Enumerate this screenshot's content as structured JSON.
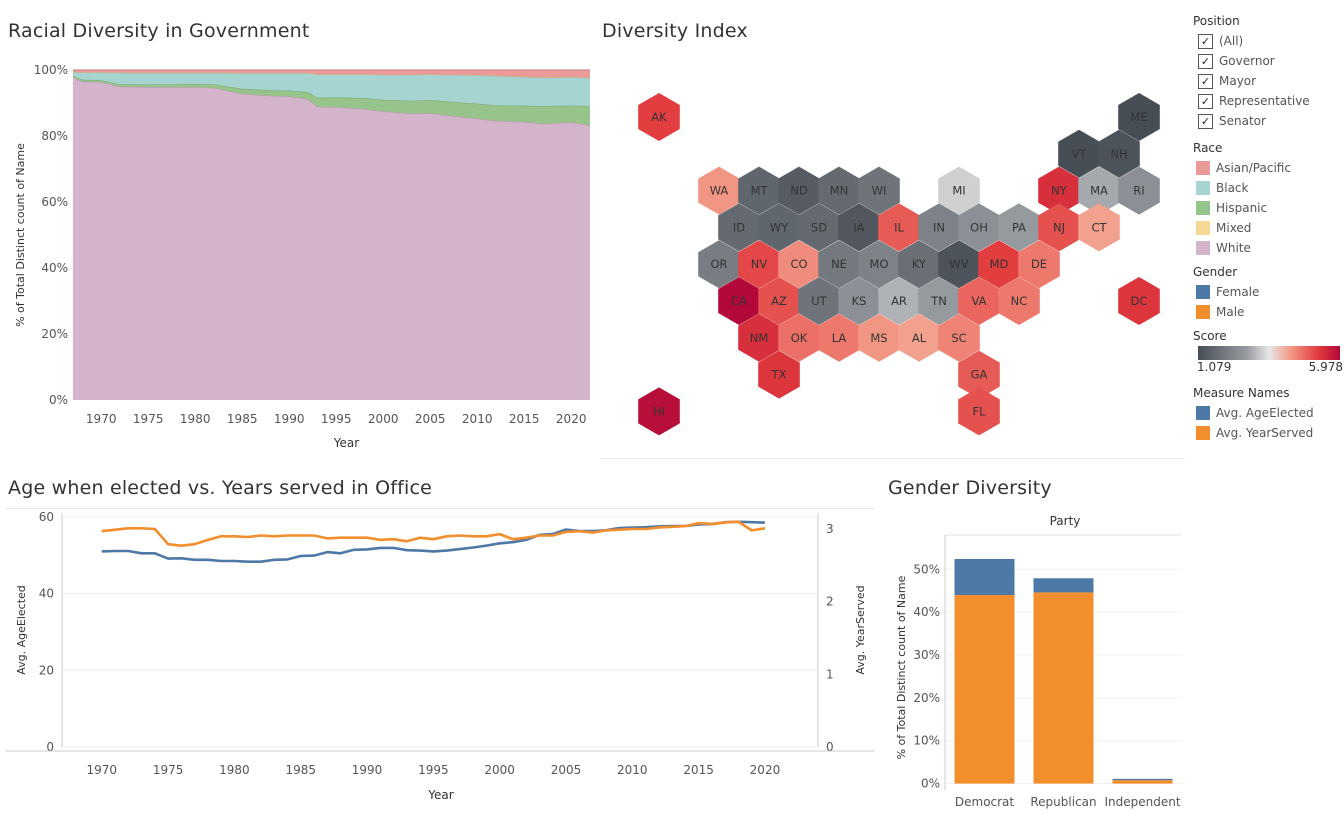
{
  "titles": {
    "racial": "Racial Diversity in Government",
    "index": "Diversity Index",
    "age": "Age when elected vs. Years served in Office",
    "gender": "Gender Diversity"
  },
  "legend": {
    "position_title": "Position",
    "positions": [
      "(All)",
      "Governor",
      "Mayor",
      "Representative",
      "Senator"
    ],
    "race_title": "Race",
    "races": [
      {
        "label": "Asian/Pacific",
        "color": "#eb9a9a"
      },
      {
        "label": "Black",
        "color": "#a6d4d1"
      },
      {
        "label": "Hispanic",
        "color": "#97c48a"
      },
      {
        "label": "Mixed",
        "color": "#f5d896"
      },
      {
        "label": "White",
        "color": "#d3b4ca"
      }
    ],
    "gender_title": "Gender",
    "genders": [
      {
        "label": "Female",
        "color": "#4e79a7"
      },
      {
        "label": "Male",
        "color": "#f28e2b"
      }
    ],
    "score_title": "Score",
    "score_min": "1.079",
    "score_max": "5.978",
    "measure_title": "Measure Names",
    "measures": [
      {
        "label": "Avg. AgeElected",
        "color": "#4e79a7"
      },
      {
        "label": "Avg. YearServed",
        "color": "#f28e2b"
      }
    ]
  },
  "chart_data": [
    {
      "type": "area",
      "title": "Racial Diversity in Government",
      "xlabel": "Year",
      "ylabel": "% of Total Distinct count of Name",
      "xlim": [
        1967,
        2022
      ],
      "ylim": [
        0,
        100
      ],
      "x_ticks": [
        "1970",
        "1975",
        "1980",
        "1985",
        "1990",
        "1995",
        "2000",
        "2005",
        "2010",
        "2015",
        "2020"
      ],
      "y_ticks": [
        "0%",
        "20%",
        "40%",
        "60%",
        "80%",
        "100%"
      ],
      "x": [
        1967,
        1968,
        1970,
        1972,
        1975,
        1978,
        1980,
        1982,
        1985,
        1988,
        1990,
        1992,
        1993,
        1995,
        1998,
        2000,
        2003,
        2005,
        2008,
        2010,
        2012,
        2015,
        2017,
        2020,
        2022
      ],
      "series": [
        {
          "name": "White",
          "color": "#d3b4ca",
          "values": [
            97.8,
            96.5,
            96.3,
            95.0,
            94.8,
            94.8,
            94.8,
            94.6,
            92.8,
            92.2,
            92.0,
            91.2,
            88.9,
            88.8,
            88.2,
            87.5,
            86.8,
            86.9,
            85.9,
            85.3,
            84.6,
            84.3,
            83.7,
            84.2,
            83.3
          ]
        },
        {
          "name": "Hispanic",
          "color": "#97c48a",
          "values": [
            0.5,
            0.6,
            0.6,
            0.7,
            0.8,
            0.9,
            1.0,
            1.1,
            1.5,
            1.7,
            1.8,
            2.1,
            2.7,
            2.9,
            3.3,
            3.5,
            3.9,
            4.0,
            4.3,
            4.5,
            4.7,
            4.9,
            5.3,
            5.0,
            5.7
          ]
        },
        {
          "name": "Black",
          "color": "#a6d4d1",
          "values": [
            1.1,
            2.2,
            2.4,
            3.5,
            3.6,
            3.5,
            3.4,
            3.5,
            4.8,
            5.2,
            5.3,
            5.8,
            7.1,
            7.0,
            7.2,
            7.6,
            7.9,
            7.8,
            8.3,
            8.6,
            8.9,
            8.7,
            8.7,
            8.6,
            8.6
          ]
        },
        {
          "name": "Mixed",
          "color": "#f5d896",
          "values": [
            0,
            0,
            0,
            0,
            0,
            0,
            0,
            0,
            0,
            0,
            0,
            0,
            0,
            0,
            0,
            0,
            0,
            0,
            0,
            0.1,
            0.1,
            0.1,
            0.1,
            0.1,
            0.1
          ]
        },
        {
          "name": "Asian/Pacific",
          "color": "#eb9a9a",
          "values": [
            0.6,
            0.7,
            0.7,
            0.8,
            0.8,
            0.8,
            0.8,
            0.8,
            0.9,
            0.9,
            0.9,
            0.9,
            1.3,
            1.3,
            1.3,
            1.4,
            1.4,
            1.3,
            1.5,
            1.5,
            1.7,
            2.0,
            2.2,
            2.1,
            2.3
          ]
        }
      ]
    },
    {
      "type": "heatmap",
      "title": "Diversity Index",
      "score_range": [
        1.079,
        5.978
      ],
      "states": [
        {
          "state": "AK",
          "score": 5.2
        },
        {
          "state": "ME",
          "score": 1.079
        },
        {
          "state": "VT",
          "score": 1.1
        },
        {
          "state": "NH",
          "score": 1.2
        },
        {
          "state": "WA",
          "score": 4.3
        },
        {
          "state": "MT",
          "score": 1.6
        },
        {
          "state": "ND",
          "score": 1.4
        },
        {
          "state": "MN",
          "score": 1.7
        },
        {
          "state": "WI",
          "score": 1.9
        },
        {
          "state": "MI",
          "score": 3.3
        },
        {
          "state": "NY",
          "score": 5.4
        },
        {
          "state": "MA",
          "score": 2.9
        },
        {
          "state": "RI",
          "score": 2.5
        },
        {
          "state": "ID",
          "score": 1.7
        },
        {
          "state": "WY",
          "score": 1.6
        },
        {
          "state": "SD",
          "score": 1.7
        },
        {
          "state": "IA",
          "score": 1.3
        },
        {
          "state": "IL",
          "score": 4.9
        },
        {
          "state": "IN",
          "score": 2.2
        },
        {
          "state": "OH",
          "score": 2.5
        },
        {
          "state": "PA",
          "score": 2.7
        },
        {
          "state": "NJ",
          "score": 5.0
        },
        {
          "state": "CT",
          "score": 4.2
        },
        {
          "state": "OR",
          "score": 2.1
        },
        {
          "state": "NV",
          "score": 5.1
        },
        {
          "state": "CO",
          "score": 4.4
        },
        {
          "state": "NE",
          "score": 2.0
        },
        {
          "state": "MO",
          "score": 2.2
        },
        {
          "state": "KY",
          "score": 1.8
        },
        {
          "state": "WV",
          "score": 1.2
        },
        {
          "state": "MD",
          "score": 5.2
        },
        {
          "state": "DE",
          "score": 4.6
        },
        {
          "state": "DC",
          "score": 5.3
        },
        {
          "state": "CA",
          "score": 5.978
        },
        {
          "state": "AZ",
          "score": 5.0
        },
        {
          "state": "UT",
          "score": 1.9
        },
        {
          "state": "KS",
          "score": 2.5
        },
        {
          "state": "AR",
          "score": 3.0
        },
        {
          "state": "TN",
          "score": 2.7
        },
        {
          "state": "VA",
          "score": 4.8
        },
        {
          "state": "NC",
          "score": 4.6
        },
        {
          "state": "NM",
          "score": 5.4
        },
        {
          "state": "OK",
          "score": 4.7
        },
        {
          "state": "LA",
          "score": 4.6
        },
        {
          "state": "MS",
          "score": 4.3
        },
        {
          "state": "AL",
          "score": 4.2
        },
        {
          "state": "SC",
          "score": 4.5
        },
        {
          "state": "TX",
          "score": 5.3
        },
        {
          "state": "GA",
          "score": 4.9
        },
        {
          "state": "HI",
          "score": 5.9
        },
        {
          "state": "FL",
          "score": 5.0
        }
      ]
    },
    {
      "type": "line",
      "title": "Age when elected vs. Years served in Office",
      "xlabel": "Year",
      "ylabel": "Avg. AgeElected",
      "y2label": "Avg. YearServed",
      "xlim": [
        1967,
        2024
      ],
      "ylim": [
        0,
        61
      ],
      "y2lim": [
        0,
        3.22
      ],
      "x_ticks": [
        "1970",
        "1975",
        "1980",
        "1985",
        "1990",
        "1995",
        "2000",
        "2005",
        "2010",
        "2015",
        "2020"
      ],
      "y_ticks": [
        "0",
        "20",
        "40",
        "60"
      ],
      "y2_ticks": [
        "0",
        "1",
        "2",
        "3"
      ],
      "x": [
        1970,
        1971,
        1972,
        1973,
        1974,
        1975,
        1976,
        1977,
        1978,
        1979,
        1980,
        1981,
        1982,
        1983,
        1984,
        1985,
        1986,
        1987,
        1988,
        1989,
        1990,
        1991,
        1992,
        1993,
        1994,
        1995,
        1996,
        1997,
        1998,
        1999,
        2000,
        2001,
        2002,
        2003,
        2004,
        2005,
        2006,
        2007,
        2008,
        2009,
        2010,
        2011,
        2012,
        2013,
        2014,
        2015,
        2016,
        2017,
        2018,
        2019,
        2020
      ],
      "series": [
        {
          "name": "Avg. AgeElected",
          "axis": "left",
          "color": "#4e79a7",
          "values": [
            51.0,
            51.1,
            51.1,
            50.5,
            50.5,
            49.1,
            49.2,
            48.8,
            48.8,
            48.5,
            48.5,
            48.3,
            48.3,
            48.8,
            48.9,
            49.8,
            49.9,
            50.8,
            50.5,
            51.4,
            51.5,
            51.9,
            51.9,
            51.3,
            51.2,
            51.0,
            51.2,
            51.6,
            52.0,
            52.5,
            53.1,
            53.4,
            54.0,
            55.3,
            55.5,
            56.7,
            56.3,
            56.3,
            56.5,
            57.1,
            57.2,
            57.3,
            57.5,
            57.6,
            57.6,
            58.0,
            58.1,
            58.6,
            58.7,
            58.6,
            58.5
          ]
        },
        {
          "name": "Avg. YearServed",
          "axis": "right",
          "color": "#f28e2b",
          "values": [
            2.97,
            2.99,
            3.01,
            3.01,
            3.0,
            2.79,
            2.77,
            2.79,
            2.85,
            2.9,
            2.9,
            2.89,
            2.91,
            2.9,
            2.91,
            2.91,
            2.91,
            2.87,
            2.88,
            2.88,
            2.88,
            2.85,
            2.86,
            2.83,
            2.88,
            2.86,
            2.9,
            2.91,
            2.9,
            2.9,
            2.93,
            2.86,
            2.88,
            2.91,
            2.91,
            2.96,
            2.97,
            2.95,
            2.98,
            2.99,
            3.0,
            3.0,
            3.02,
            3.03,
            3.04,
            3.08,
            3.07,
            3.09,
            3.1,
            2.98,
            3.01
          ]
        }
      ]
    },
    {
      "type": "bar",
      "title": "Gender Diversity",
      "xlabel": "",
      "header": "Party",
      "ylabel": "% of Total Distinct count of Name",
      "ylim": [
        -1.5,
        58
      ],
      "y_ticks": [
        "0%",
        "10%",
        "20%",
        "30%",
        "40%",
        "50%"
      ],
      "categories": [
        "Democrat",
        "Republican",
        "Independent"
      ],
      "series": [
        {
          "name": "Male",
          "color": "#f28e2b",
          "values": [
            44.0,
            44.6,
            0.8
          ]
        },
        {
          "name": "Female",
          "color": "#4e79a7",
          "values": [
            8.4,
            3.3,
            0.3
          ]
        }
      ]
    }
  ]
}
